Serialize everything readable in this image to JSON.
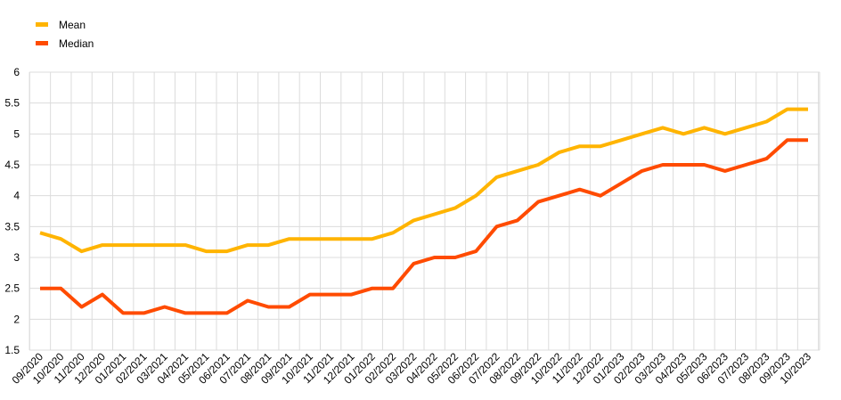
{
  "chart_data": {
    "type": "line",
    "title": "",
    "xlabel": "",
    "ylabel": "",
    "ylim": [
      1.5,
      6
    ],
    "yticks": [
      1.5,
      2,
      2.5,
      3,
      3.5,
      4,
      4.5,
      5,
      5.5,
      6
    ],
    "grid": true,
    "legend_position": "top-left",
    "categories": [
      "09/2020",
      "10/2020",
      "11/2020",
      "12/2020",
      "01/2021",
      "02/2021",
      "03/2021",
      "04/2021",
      "05/2021",
      "06/2021",
      "07/2021",
      "08/2021",
      "09/2021",
      "10/2021",
      "11/2021",
      "12/2021",
      "01/2022",
      "02/2022",
      "03/2022",
      "04/2022",
      "05/2022",
      "06/2022",
      "07/2022",
      "08/2022",
      "09/2022",
      "10/2022",
      "11/2022",
      "12/2022",
      "01/2023",
      "02/2023",
      "03/2023",
      "04/2023",
      "05/2023",
      "06/2023",
      "07/2023",
      "08/2023",
      "09/2023",
      "10/2023"
    ],
    "series": [
      {
        "name": "Mean",
        "color": "#FFB400",
        "values": [
          3.4,
          3.3,
          3.1,
          3.2,
          3.2,
          3.2,
          3.2,
          3.2,
          3.1,
          3.1,
          3.2,
          3.2,
          3.3,
          3.3,
          3.3,
          3.3,
          3.3,
          3.4,
          3.6,
          3.7,
          3.8,
          4.0,
          4.3,
          4.4,
          4.5,
          4.7,
          4.8,
          4.8,
          4.9,
          5.0,
          5.1,
          5.0,
          5.1,
          5.0,
          5.1,
          5.2,
          5.4,
          5.4
        ]
      },
      {
        "name": "Median",
        "color": "#FF4B00",
        "values": [
          2.5,
          2.5,
          2.2,
          2.4,
          2.1,
          2.1,
          2.2,
          2.1,
          2.1,
          2.1,
          2.3,
          2.2,
          2.2,
          2.4,
          2.4,
          2.4,
          2.5,
          2.5,
          2.9,
          3.0,
          3.0,
          3.1,
          3.5,
          3.6,
          3.9,
          4.0,
          4.1,
          4.0,
          4.2,
          4.4,
          4.5,
          4.5,
          4.5,
          4.4,
          4.5,
          4.6,
          4.9,
          4.9
        ]
      }
    ]
  }
}
